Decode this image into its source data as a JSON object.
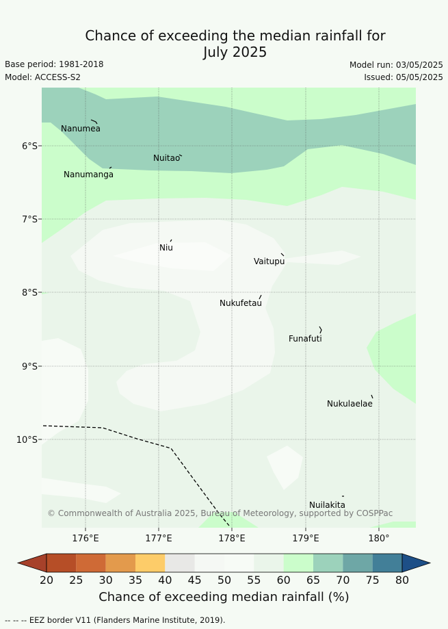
{
  "title_line1": "Chance of exceeding the median rainfall for",
  "title_line2": "July 2025",
  "base_period": "Base period: 1981-2018",
  "model": "Model: ACCESS-S2",
  "model_run": "Model run: 03/05/2025",
  "issued": "Issued: 05/05/2025",
  "copyright": "© Commonwealth of Australia 2025, Bureau of Meteorology, supported by COSPPac",
  "lat_labels": [
    "6°S",
    "7°S",
    "8°S",
    "9°S",
    "10°S"
  ],
  "lon_labels": [
    "176°E",
    "177°E",
    "178°E",
    "179°E",
    "180°"
  ],
  "places": [
    {
      "name": "Nanumea"
    },
    {
      "name": "Nuitao"
    },
    {
      "name": "Nanumanga"
    },
    {
      "name": "Niu"
    },
    {
      "name": "Vaitupu"
    },
    {
      "name": "Nukufetau"
    },
    {
      "name": "Funafuti"
    },
    {
      "name": "Nukulaelae"
    },
    {
      "name": "Nuilakita"
    }
  ],
  "colorbar": {
    "ticks": [
      "20",
      "25",
      "30",
      "35",
      "40",
      "45",
      "50",
      "55",
      "60",
      "65",
      "70",
      "75",
      "80"
    ],
    "colors": [
      "#a7412a",
      "#b64e27",
      "#cf6a36",
      "#e39a4c",
      "#fdcc69",
      "#e8e8e6",
      "#f5f8f4",
      "#f7fbf6",
      "#eaf5ea",
      "#cbfdcb",
      "#9cd2bb",
      "#6ea7a6",
      "#427f98",
      "#1d4f87"
    ],
    "label": "Chance of exceeding median rainfall (%)"
  },
  "legend_line": "-- -- -- EEZ border V11 (Flanders Marine Institute, 2019)."
}
